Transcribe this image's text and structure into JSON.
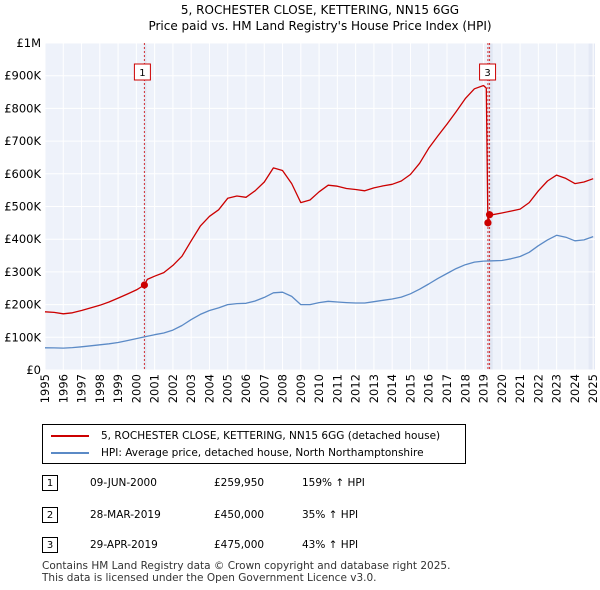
{
  "chart_data": {
    "type": "line",
    "title": "5, ROCHESTER CLOSE, KETTERING, NN15 6GG",
    "subtitle": "Price paid vs. HM Land Registry's House Price Index (HPI)",
    "xlim": [
      1995,
      2025.1
    ],
    "ylim": [
      0,
      1000000
    ],
    "y_ticks": [
      0,
      100000,
      200000,
      300000,
      400000,
      500000,
      600000,
      700000,
      800000,
      900000,
      1000000
    ],
    "y_tick_labels": [
      "£0",
      "£100K",
      "£200K",
      "£300K",
      "£400K",
      "£500K",
      "£600K",
      "£700K",
      "£800K",
      "£900K",
      "£1M"
    ],
    "x_ticks": [
      1995,
      1996,
      1997,
      1998,
      1999,
      2000,
      2001,
      2002,
      2003,
      2004,
      2005,
      2006,
      2007,
      2008,
      2009,
      2010,
      2011,
      2012,
      2013,
      2014,
      2015,
      2016,
      2017,
      2018,
      2019,
      2020,
      2021,
      2022,
      2023,
      2024,
      2025
    ],
    "x_tick_labels": [
      "1995",
      "1996",
      "1997",
      "1998",
      "1999",
      "2000",
      "2001",
      "2002",
      "2003",
      "2004",
      "2005",
      "2006",
      "2007",
      "2008",
      "2009",
      "2010",
      "2011",
      "2012",
      "2013",
      "2014",
      "2015",
      "2016",
      "2017",
      "2018",
      "2019",
      "2020",
      "2021",
      "2022",
      "2023",
      "2024",
      "2025"
    ],
    "grid": true,
    "series": [
      {
        "name": "5, ROCHESTER CLOSE, KETTERING, NN15 6GG (detached house)",
        "color": "#cc0000",
        "x": [
          1995.0,
          1995.5,
          1996.0,
          1996.5,
          1997.0,
          1997.5,
          1998.0,
          1998.5,
          1999.0,
          1999.5,
          2000.0,
          2000.44,
          2000.6,
          2001.0,
          2001.5,
          2002.0,
          2002.5,
          2003.0,
          2003.5,
          2004.0,
          2004.5,
          2005.0,
          2005.5,
          2006.0,
          2006.5,
          2007.0,
          2007.5,
          2008.0,
          2008.5,
          2009.0,
          2009.5,
          2010.0,
          2010.5,
          2011.0,
          2011.5,
          2012.0,
          2012.5,
          2013.0,
          2013.5,
          2014.0,
          2014.5,
          2015.0,
          2015.5,
          2016.0,
          2016.5,
          2017.0,
          2017.5,
          2018.0,
          2018.5,
          2019.0,
          2019.15,
          2019.24,
          2019.33,
          2019.5,
          2020.0,
          2020.5,
          2021.0,
          2021.5,
          2022.0,
          2022.5,
          2023.0,
          2023.5,
          2024.0,
          2024.5,
          2025.0
        ],
        "values": [
          178000,
          176000,
          172000,
          175000,
          182000,
          190000,
          198000,
          208000,
          220000,
          232000,
          245000,
          259950,
          277000,
          287000,
          298000,
          320000,
          348000,
          395000,
          440000,
          470000,
          490000,
          525000,
          532000,
          528000,
          548000,
          575000,
          618000,
          610000,
          570000,
          512000,
          520000,
          545000,
          565000,
          562000,
          555000,
          552000,
          548000,
          557000,
          563000,
          568000,
          578000,
          598000,
          632000,
          678000,
          716000,
          752000,
          790000,
          830000,
          860000,
          870000,
          862000,
          450000,
          475000,
          475000,
          480000,
          486000,
          492000,
          512000,
          548000,
          578000,
          596000,
          586000,
          570000,
          575000,
          585000
        ]
      },
      {
        "name": "HPI: Average price, detached house, North Northamptonshire",
        "color": "#5b8ac6",
        "x": [
          1995.0,
          1995.5,
          1996.0,
          1996.5,
          1997.0,
          1997.5,
          1998.0,
          1998.5,
          1999.0,
          1999.5,
          2000.0,
          2000.5,
          2001.0,
          2001.5,
          2002.0,
          2002.5,
          2003.0,
          2003.5,
          2004.0,
          2004.5,
          2005.0,
          2005.5,
          2006.0,
          2006.5,
          2007.0,
          2007.5,
          2008.0,
          2008.5,
          2009.0,
          2009.5,
          2010.0,
          2010.5,
          2011.0,
          2011.5,
          2012.0,
          2012.5,
          2013.0,
          2013.5,
          2014.0,
          2014.5,
          2015.0,
          2015.5,
          2016.0,
          2016.5,
          2017.0,
          2017.5,
          2018.0,
          2018.5,
          2019.0,
          2019.5,
          2020.0,
          2020.5,
          2021.0,
          2021.5,
          2022.0,
          2022.5,
          2023.0,
          2023.5,
          2024.0,
          2024.5,
          2025.0
        ],
        "values": [
          68000,
          67500,
          67000,
          68500,
          71000,
          74000,
          77000,
          80000,
          84000,
          90000,
          96000,
          102000,
          108000,
          113000,
          122000,
          136000,
          154000,
          170000,
          182000,
          190000,
          200000,
          203000,
          204000,
          211000,
          222000,
          236000,
          238000,
          225000,
          200000,
          200000,
          206000,
          210000,
          208000,
          206000,
          205000,
          205000,
          209000,
          213000,
          217000,
          223000,
          233000,
          247000,
          263000,
          280000,
          295000,
          310000,
          322000,
          330000,
          333000,
          334000,
          335000,
          340000,
          347000,
          360000,
          380000,
          398000,
          412000,
          406000,
          395000,
          398000,
          408000
        ]
      }
    ],
    "sales": [
      {
        "id": "1",
        "x": 2000.44,
        "value": 259950
      },
      {
        "id": "2",
        "x": 2019.24,
        "value": 450000
      },
      {
        "id": "3",
        "x": 2019.33,
        "value": 475000
      }
    ]
  },
  "legend": {
    "property_label": "5, ROCHESTER CLOSE, KETTERING, NN15 6GG (detached house)",
    "hpi_label": "HPI: Average price, detached house, North Northamptonshire"
  },
  "table": [
    {
      "num": "1",
      "date": "09-JUN-2000",
      "price": "£259,950",
      "hpi": "159% ↑ HPI"
    },
    {
      "num": "2",
      "date": "28-MAR-2019",
      "price": "£450,000",
      "hpi": "35% ↑ HPI"
    },
    {
      "num": "3",
      "date": "29-APR-2019",
      "price": "£475,000",
      "hpi": "43% ↑ HPI"
    }
  ],
  "footer": {
    "line1": "Contains HM Land Registry data © Crown copyright and database right 2025.",
    "line2": "This data is licensed under the Open Government Licence v3.0."
  },
  "colors": {
    "property": "#cc0000",
    "hpi": "#5b8ac6",
    "plot_bg": "#eef2fa",
    "grid": "#ffffff",
    "shade": "#e0e6f2"
  }
}
